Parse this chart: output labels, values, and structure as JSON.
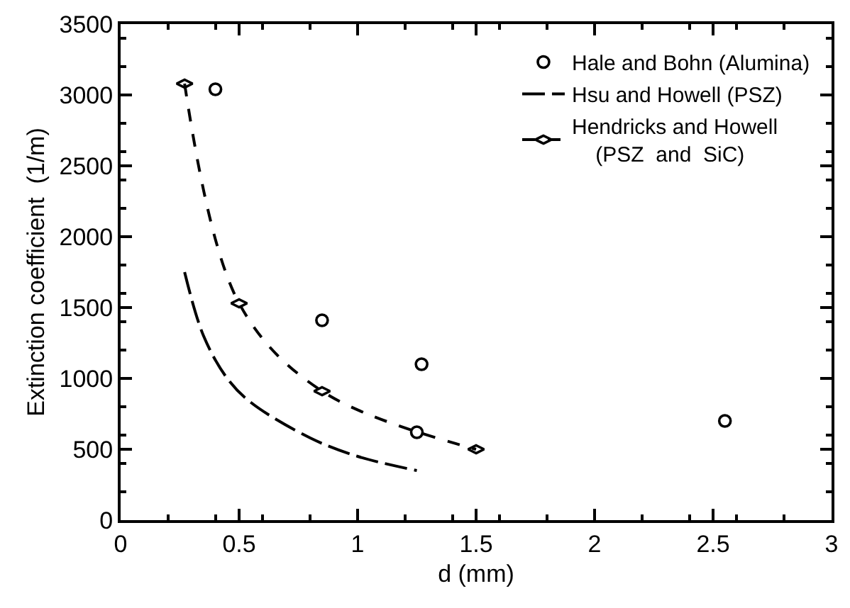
{
  "chart_data": {
    "type": "scatter",
    "xlabel": "d (mm)",
    "ylabel": "Extinction coefficient  (1/m)",
    "xlim": [
      0,
      3
    ],
    "xticks": [
      0,
      0.5,
      1,
      1.5,
      2,
      2.5,
      3
    ],
    "ylim": [
      0,
      3500
    ],
    "yticks": [
      0,
      500,
      1000,
      1500,
      2000,
      2500,
      3000,
      3500
    ],
    "legend": "top right",
    "series": [
      {
        "name": "Hale and Bohn (Alumina)",
        "marker": "circle",
        "color": "#000000",
        "x": [
          0.4,
          0.85,
          1.27,
          1.25,
          2.55
        ],
        "values": [
          3040,
          1410,
          1100,
          620,
          700
        ]
      },
      {
        "name": "Hsu and Howell (PSZ)",
        "type": "line",
        "marker": "none",
        "line_style": "longdash",
        "color": "#000000",
        "x": [
          0.27,
          0.35,
          0.45,
          0.55,
          0.8,
          1.0,
          1.25
        ],
        "values": [
          1750,
          1300,
          1000,
          830,
          580,
          450,
          350
        ]
      },
      {
        "name": "Hendricks and Howell\n(PSZ  and  SiC)",
        "type": "line",
        "marker": "diamond",
        "line_style": "dashed",
        "color": "#000000",
        "x": [
          0.27,
          0.5,
          0.85,
          1.5
        ],
        "values": [
          3080,
          1530,
          910,
          500
        ]
      }
    ]
  }
}
